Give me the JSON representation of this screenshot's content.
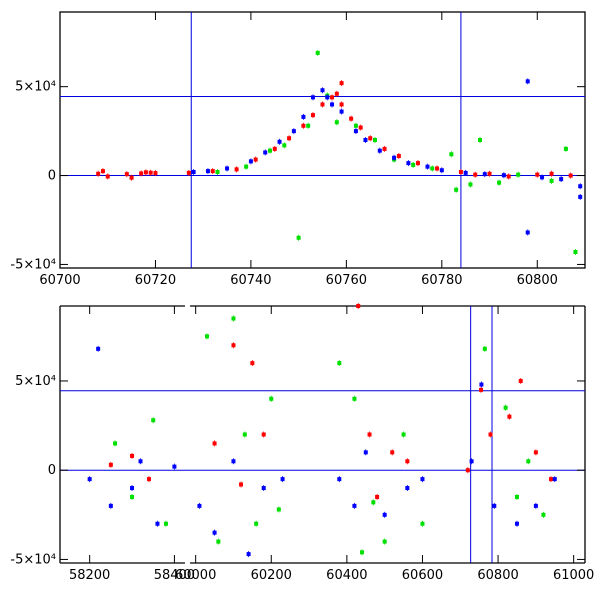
{
  "chart_data": [
    {
      "type": "scatter",
      "panel": "top",
      "xlim": [
        60700,
        60810
      ],
      "ylim": [
        -52000,
        92000
      ],
      "x_ticks": [
        60700,
        60720,
        60740,
        60760,
        60780,
        60800
      ],
      "x_tick_labels": [
        "60700",
        "60720",
        "60740",
        "60760",
        "60780",
        "60800"
      ],
      "y_ticks": [
        -50000,
        0,
        50000
      ],
      "y_tick_labels": [
        "-5×10⁴",
        "0",
        "5×10⁴"
      ],
      "reference_lines": {
        "horizontal": [
          0,
          44500
        ],
        "vertical": [
          60727.5,
          60784
        ]
      },
      "grid": false,
      "series": [
        {
          "color": "#ff0000",
          "points": [
            [
              60708,
              1000
            ],
            [
              60709,
              2500
            ],
            [
              60710,
              -500
            ],
            [
              60714,
              800
            ],
            [
              60715,
              -1200
            ],
            [
              60717,
              1200
            ],
            [
              60718,
              1800
            ],
            [
              60719,
              1600
            ],
            [
              60720,
              1400
            ],
            [
              60727,
              1500
            ],
            [
              60732,
              2500
            ],
            [
              60737,
              3500
            ],
            [
              60741,
              9000
            ],
            [
              60745,
              15000
            ],
            [
              60748,
              21000
            ],
            [
              60751,
              28000
            ],
            [
              60753,
              34000
            ],
            [
              60755,
              40000
            ],
            [
              60757,
              44000
            ],
            [
              60758,
              46000
            ],
            [
              60759,
              40000
            ],
            [
              60761,
              32000
            ],
            [
              60763,
              27000
            ],
            [
              60765,
              21000
            ],
            [
              60768,
              15000
            ],
            [
              60771,
              11000
            ],
            [
              60775,
              7000
            ],
            [
              60779,
              4000
            ],
            [
              60784,
              2000
            ],
            [
              60787,
              500
            ],
            [
              60790,
              1000
            ],
            [
              60794,
              -500
            ],
            [
              60800,
              500
            ],
            [
              60803,
              1000
            ],
            [
              60807,
              0
            ],
            [
              60759,
              52000
            ]
          ]
        },
        {
          "color": "#00e000",
          "points": [
            [
              60733,
              2000
            ],
            [
              60739,
              5000
            ],
            [
              60744,
              14000
            ],
            [
              60747,
              17000
            ],
            [
              60750,
              -35000
            ],
            [
              60752,
              28000
            ],
            [
              60754,
              69000
            ],
            [
              60756,
              45000
            ],
            [
              60758,
              30000
            ],
            [
              60762,
              28000
            ],
            [
              60766,
              20000
            ],
            [
              60770,
              9000
            ],
            [
              60774,
              6000
            ],
            [
              60778,
              4000
            ],
            [
              60782,
              12000
            ],
            [
              60783,
              -8000
            ],
            [
              60786,
              -5000
            ],
            [
              60788,
              20000
            ],
            [
              60792,
              -4000
            ],
            [
              60796,
              500
            ],
            [
              60803,
              -3000
            ],
            [
              60806,
              15000
            ],
            [
              60808,
              -43000
            ]
          ]
        },
        {
          "color": "#0000ff",
          "points": [
            [
              60728,
              2000
            ],
            [
              60731,
              2500
            ],
            [
              60735,
              4000
            ],
            [
              60740,
              8000
            ],
            [
              60743,
              13000
            ],
            [
              60746,
              19000
            ],
            [
              60749,
              25000
            ],
            [
              60751,
              33000
            ],
            [
              60753,
              44000
            ],
            [
              60755,
              48000
            ],
            [
              60756,
              44000
            ],
            [
              60757,
              40000
            ],
            [
              60759,
              36000
            ],
            [
              60762,
              25000
            ],
            [
              60764,
              20000
            ],
            [
              60767,
              14000
            ],
            [
              60770,
              10000
            ],
            [
              60773,
              7000
            ],
            [
              60777,
              5000
            ],
            [
              60780,
              3000
            ],
            [
              60785,
              1500
            ],
            [
              60789,
              800
            ],
            [
              60793,
              200
            ],
            [
              60798,
              53000
            ],
            [
              60798,
              -32000
            ],
            [
              60801,
              -1000
            ],
            [
              60805,
              -2000
            ],
            [
              60809,
              -12000
            ],
            [
              60809,
              -6000
            ]
          ]
        }
      ]
    },
    {
      "type": "scatter",
      "panel": "bottom",
      "xlim": [
        58130,
        61030
      ],
      "ylim": [
        -52000,
        92000
      ],
      "broken_x_axis": true,
      "segments": [
        {
          "xlim": [
            58130,
            58425
          ],
          "x_ticks": [
            58200,
            58400
          ],
          "x_tick_labels": [
            "58200",
            "58400"
          ]
        },
        {
          "xlim": [
            59985,
            61030
          ],
          "x_ticks": [
            60000,
            60200,
            60400,
            60600,
            60800,
            61000
          ],
          "x_tick_labels": [
            "60000",
            "60200",
            "60400",
            "60600",
            "60800",
            "61000"
          ]
        }
      ],
      "y_ticks": [
        -50000,
        0,
        50000
      ],
      "y_tick_labels": [
        "-5×10⁴",
        "0",
        "5×10⁴"
      ],
      "reference_lines": {
        "horizontal": [
          0,
          44500
        ],
        "vertical": [
          60727.5,
          60784
        ]
      },
      "grid": false,
      "series": [
        {
          "color": "#ff0000",
          "points": [
            [
              58250,
              3000
            ],
            [
              58300,
              8000
            ],
            [
              58340,
              -5000
            ],
            [
              60050,
              15000
            ],
            [
              60100,
              70000
            ],
            [
              60120,
              -8000
            ],
            [
              60150,
              60000
            ],
            [
              60180,
              20000
            ],
            [
              60430,
              92000
            ],
            [
              60460,
              20000
            ],
            [
              60480,
              -15000
            ],
            [
              60520,
              10000
            ],
            [
              60560,
              5000
            ],
            [
              60720,
              0
            ],
            [
              60755,
              45000
            ],
            [
              60780,
              20000
            ],
            [
              60830,
              30000
            ],
            [
              60860,
              50000
            ],
            [
              60900,
              10000
            ],
            [
              60940,
              -5000
            ]
          ]
        },
        {
          "color": "#00e000",
          "points": [
            [
              58260,
              15000
            ],
            [
              58300,
              -15000
            ],
            [
              58350,
              28000
            ],
            [
              58380,
              -30000
            ],
            [
              60030,
              75000
            ],
            [
              60060,
              -40000
            ],
            [
              60100,
              85000
            ],
            [
              60130,
              20000
            ],
            [
              60160,
              -30000
            ],
            [
              60200,
              40000
            ],
            [
              60220,
              -22000
            ],
            [
              60380,
              60000
            ],
            [
              60420,
              40000
            ],
            [
              60440,
              -46000
            ],
            [
              60470,
              -18000
            ],
            [
              60500,
              -40000
            ],
            [
              60550,
              20000
            ],
            [
              60600,
              -30000
            ],
            [
              60765,
              68000
            ],
            [
              60820,
              35000
            ],
            [
              60850,
              -15000
            ],
            [
              60880,
              5000
            ],
            [
              60920,
              -25000
            ]
          ]
        },
        {
          "color": "#0000ff",
          "points": [
            [
              58200,
              -5000
            ],
            [
              58220,
              68000
            ],
            [
              58250,
              -20000
            ],
            [
              58300,
              -10000
            ],
            [
              58320,
              5000
            ],
            [
              58360,
              -30000
            ],
            [
              58400,
              2000
            ],
            [
              60010,
              -20000
            ],
            [
              60050,
              -35000
            ],
            [
              60100,
              5000
            ],
            [
              60140,
              -47000
            ],
            [
              60180,
              -10000
            ],
            [
              60230,
              -5000
            ],
            [
              60380,
              -5000
            ],
            [
              60420,
              -20000
            ],
            [
              60450,
              10000
            ],
            [
              60500,
              -25000
            ],
            [
              60560,
              -10000
            ],
            [
              60600,
              -5000
            ],
            [
              60730,
              5000
            ],
            [
              60756,
              48000
            ],
            [
              60790,
              -20000
            ],
            [
              60850,
              -30000
            ],
            [
              60900,
              -20000
            ],
            [
              60950,
              -5000
            ]
          ]
        }
      ]
    }
  ]
}
